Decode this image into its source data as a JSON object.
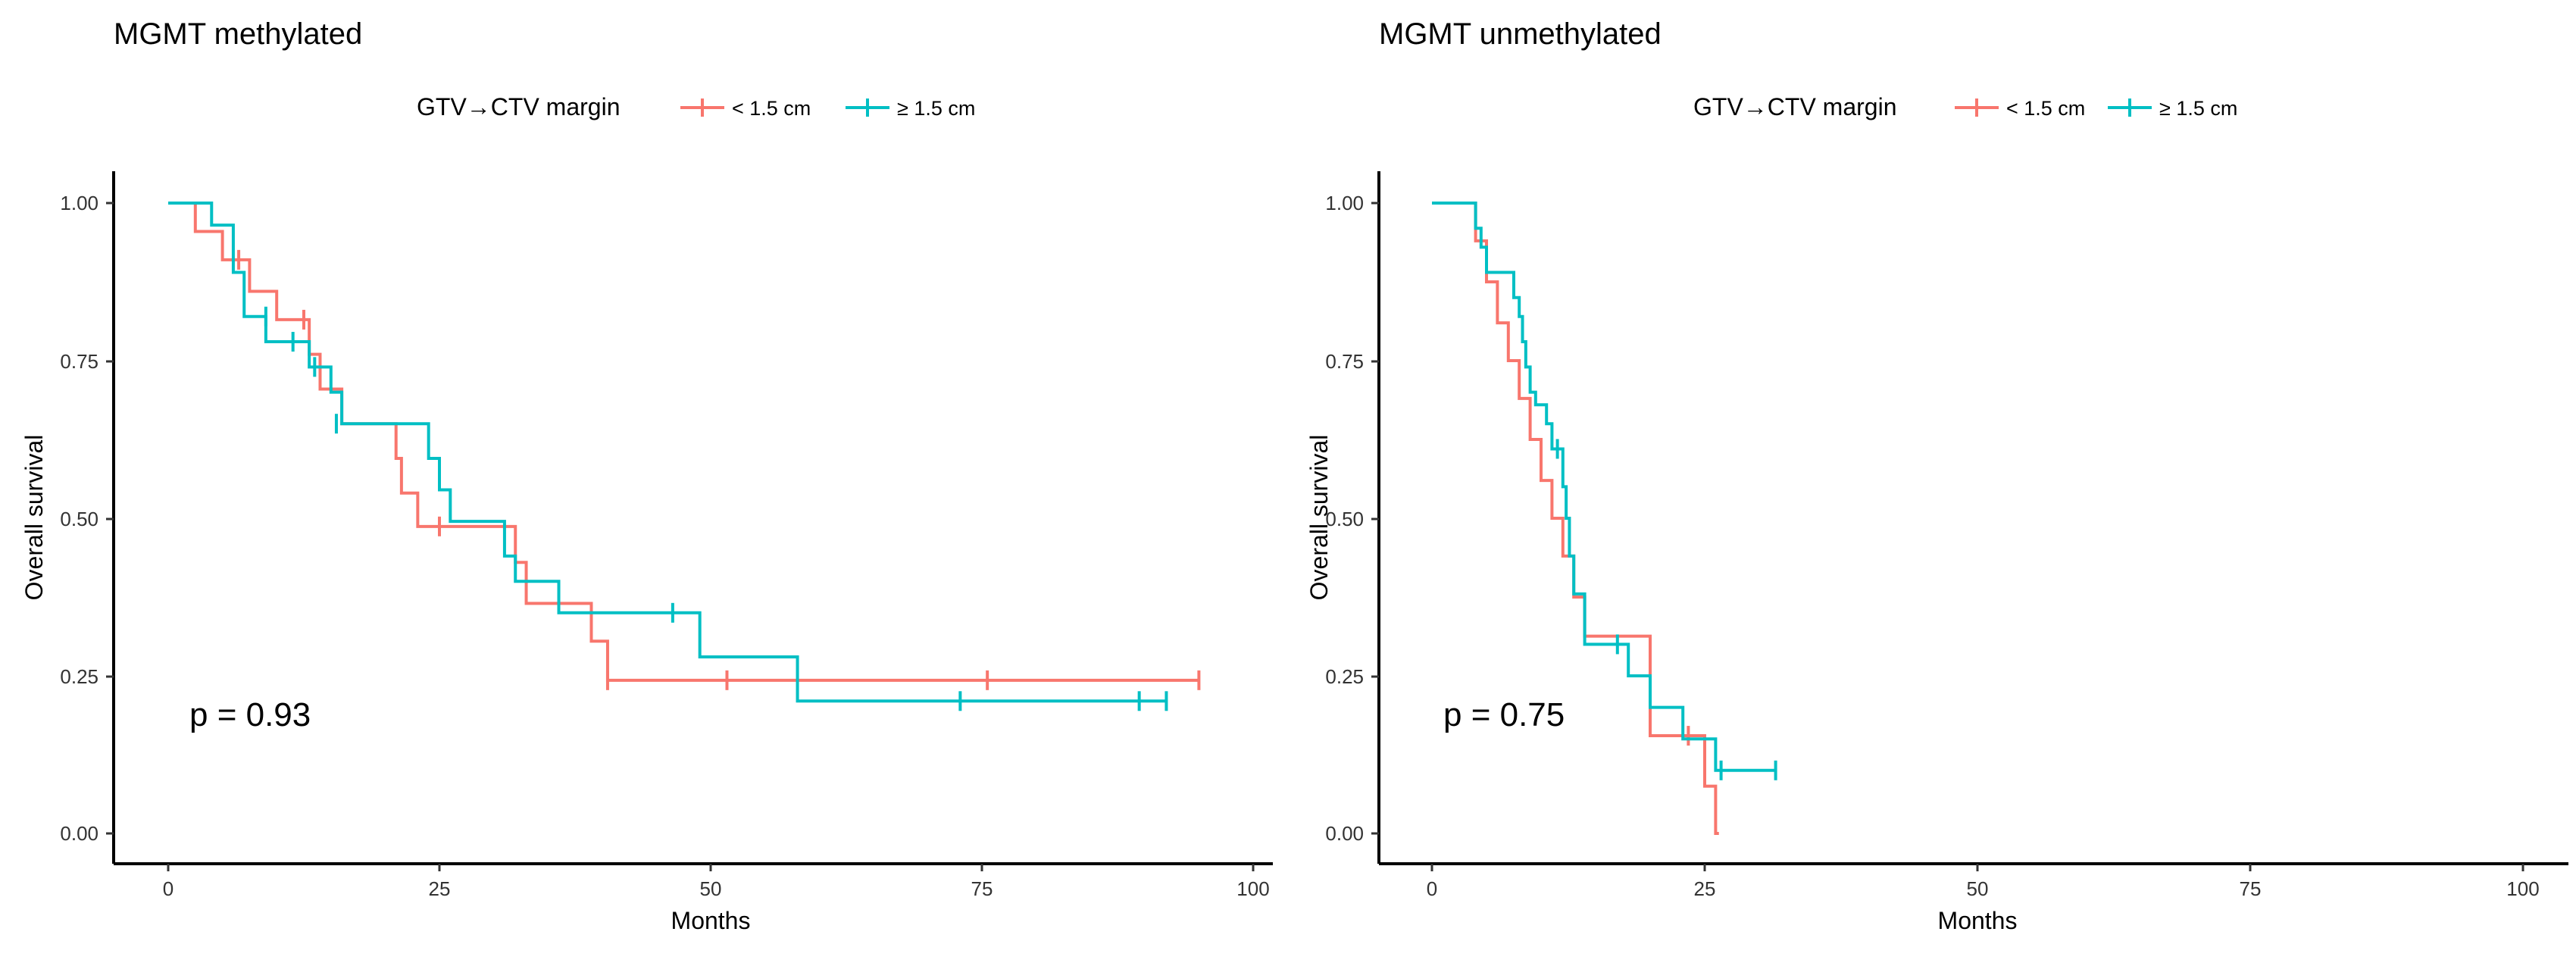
{
  "chart_data": [
    {
      "type": "line",
      "title": "MGMT methylated",
      "xlabel": "Months",
      "ylabel": "Overall survival",
      "xlim": [
        0,
        100
      ],
      "ylim": [
        0,
        1
      ],
      "xticks": [
        "0",
        "25",
        "50",
        "75",
        "100"
      ],
      "yticks": [
        "0.00",
        "0.25",
        "0.50",
        "0.75",
        "1.00"
      ],
      "grid": false,
      "legend": {
        "title": "GTV→CTV margin",
        "position": "top",
        "entries": [
          "< 1.5 cm",
          "≥ 1.5 cm"
        ]
      },
      "annotation": "p = 0.93",
      "series": [
        {
          "name": "< 1.5 cm",
          "color": "#F8766D",
          "x": [
            0,
            2.5,
            5,
            7.5,
            10,
            13,
            14,
            16,
            21,
            21.5,
            23,
            32,
            33,
            39,
            40.5,
            95
          ],
          "y": [
            1.0,
            0.955,
            0.91,
            0.86,
            0.815,
            0.76,
            0.705,
            0.65,
            0.595,
            0.54,
            0.487,
            0.43,
            0.365,
            0.305,
            0.243,
            0.243
          ],
          "censor_x": [
            6.5,
            12.5,
            25,
            40.5,
            51.5,
            75.5,
            95
          ],
          "censor_y": [
            0.91,
            0.815,
            0.487,
            0.243,
            0.243,
            0.243,
            0.243
          ]
        },
        {
          "name": "≥ 1.5 cm",
          "color": "#00BFC4",
          "x": [
            0,
            4,
            6,
            7,
            9,
            10,
            13,
            15,
            16,
            24,
            25,
            26,
            31,
            32,
            36,
            49,
            58,
            92
          ],
          "y": [
            1.0,
            0.965,
            0.89,
            0.82,
            0.78,
            0.78,
            0.74,
            0.7,
            0.65,
            0.595,
            0.545,
            0.495,
            0.44,
            0.4,
            0.35,
            0.28,
            0.21,
            0.21
          ],
          "censor_x": [
            9,
            11.5,
            13.5,
            15.5,
            46.5,
            73,
            89.5,
            92
          ],
          "censor_y": [
            0.82,
            0.78,
            0.74,
            0.65,
            0.35,
            0.21,
            0.21,
            0.21
          ]
        }
      ]
    },
    {
      "type": "line",
      "title": "MGMT unmethylated",
      "xlabel": "Months",
      "ylabel": "Overall survival",
      "xlim": [
        0,
        100
      ],
      "ylim": [
        0,
        1
      ],
      "xticks": [
        "0",
        "25",
        "50",
        "75",
        "100"
      ],
      "yticks": [
        "0.00",
        "0.25",
        "0.50",
        "0.75",
        "1.00"
      ],
      "grid": false,
      "legend": {
        "title": "GTV→CTV margin",
        "position": "top",
        "entries": [
          "< 1.5 cm",
          "≥ 1.5 cm"
        ]
      },
      "annotation": "p = 0.75",
      "series": [
        {
          "name": "< 1.5 cm",
          "color": "#F8766D",
          "x": [
            0,
            4,
            5,
            6,
            7,
            8,
            9,
            10,
            11,
            12,
            13,
            14,
            20,
            24,
            25,
            26,
            26.3
          ],
          "y": [
            1.0,
            0.94,
            0.875,
            0.81,
            0.75,
            0.69,
            0.625,
            0.56,
            0.5,
            0.44,
            0.375,
            0.313,
            0.155,
            0.155,
            0.075,
            0.0,
            0.0
          ],
          "censor_x": [
            23.5
          ],
          "censor_y": [
            0.155
          ]
        },
        {
          "name": "≥ 1.5 cm",
          "color": "#00BFC4",
          "x": [
            0,
            4,
            4.5,
            5,
            7.5,
            8,
            8.3,
            8.6,
            9,
            9.5,
            10.5,
            11,
            11.5,
            12,
            12.3,
            12.6,
            13,
            14,
            17,
            18,
            20,
            23,
            24.5,
            26,
            31.5
          ],
          "y": [
            1.0,
            0.96,
            0.93,
            0.89,
            0.85,
            0.82,
            0.78,
            0.74,
            0.7,
            0.68,
            0.65,
            0.61,
            0.61,
            0.55,
            0.5,
            0.44,
            0.38,
            0.3,
            0.3,
            0.25,
            0.2,
            0.15,
            0.15,
            0.1,
            0.1
          ],
          "censor_x": [
            11.5,
            17,
            26.5,
            31.5
          ],
          "censor_y": [
            0.61,
            0.3,
            0.1,
            0.1
          ]
        }
      ]
    }
  ]
}
